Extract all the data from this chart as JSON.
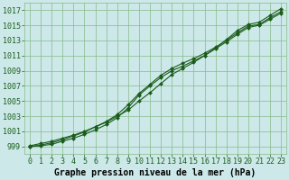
{
  "background_color": "#cce8e8",
  "grid_color": "#88bb88",
  "line_color": "#1a5c1a",
  "marker_color": "#1a5c1a",
  "xlabel": "Graphe pression niveau de la mer (hPa)",
  "xlim": [
    -0.5,
    23.5
  ],
  "ylim": [
    998.0,
    1018.0
  ],
  "yticks": [
    999,
    1001,
    1003,
    1005,
    1007,
    1009,
    1011,
    1013,
    1015,
    1017
  ],
  "xticks": [
    0,
    1,
    2,
    3,
    4,
    5,
    6,
    7,
    8,
    9,
    10,
    11,
    12,
    13,
    14,
    15,
    16,
    17,
    18,
    19,
    20,
    21,
    22,
    23
  ],
  "series1_x": [
    0,
    1,
    2,
    3,
    4,
    5,
    6,
    7,
    8,
    9,
    10,
    11,
    12,
    13,
    14,
    15,
    16,
    17,
    18,
    19,
    20,
    21,
    22,
    23
  ],
  "series1_y": [
    999.1,
    999.4,
    999.7,
    1000.1,
    1000.5,
    1001.0,
    1001.6,
    1002.2,
    1003.0,
    1003.8,
    1005.0,
    1006.1,
    1007.3,
    1008.5,
    1009.3,
    1010.1,
    1011.0,
    1012.0,
    1013.1,
    1014.3,
    1015.1,
    1015.4,
    1016.3,
    1017.2
  ],
  "series2_x": [
    0,
    1,
    2,
    3,
    4,
    5,
    6,
    7,
    8,
    9,
    10,
    11,
    12,
    13,
    14,
    15,
    16,
    17,
    18,
    19,
    20,
    21,
    22,
    23
  ],
  "series2_y": [
    999.0,
    999.2,
    999.5,
    999.9,
    1000.4,
    1000.9,
    1001.6,
    1002.3,
    1003.2,
    1004.5,
    1006.0,
    1007.2,
    1008.4,
    1009.3,
    1010.0,
    1010.6,
    1011.3,
    1012.1,
    1013.0,
    1014.0,
    1014.9,
    1015.1,
    1016.0,
    1016.8
  ],
  "series3_x": [
    0,
    1,
    2,
    3,
    4,
    5,
    6,
    7,
    8,
    9,
    10,
    11,
    12,
    13,
    14,
    15,
    16,
    17,
    18,
    19,
    20,
    21,
    22,
    23
  ],
  "series3_y": [
    999.0,
    999.1,
    999.3,
    999.7,
    1000.1,
    1000.6,
    1001.2,
    1001.9,
    1002.8,
    1004.1,
    1005.8,
    1007.0,
    1008.1,
    1009.0,
    1009.6,
    1010.3,
    1011.0,
    1011.9,
    1012.8,
    1013.8,
    1014.7,
    1015.0,
    1015.8,
    1016.6
  ],
  "xlabel_fontsize": 7,
  "tick_fontsize": 6
}
